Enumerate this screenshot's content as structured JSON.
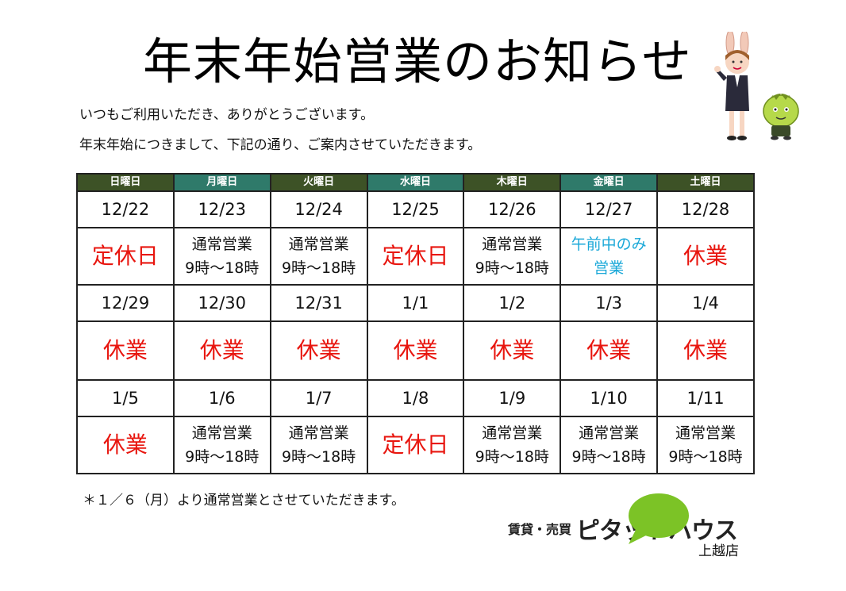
{
  "title": "年末年始営業のお知らせ",
  "intro": {
    "line1": "いつもご利用いただき、ありがとうございます。",
    "line2": "年末年始につきまして、下記の通り、ご案内させていただきます。"
  },
  "calendar": {
    "headers": [
      "日曜日",
      "月曜日",
      "火曜日",
      "水曜日",
      "木曜日",
      "金曜日",
      "土曜日"
    ],
    "weeks": [
      {
        "dates": [
          "12/22",
          "12/23",
          "12/24",
          "12/25",
          "12/26",
          "12/27",
          "12/28"
        ],
        "status": [
          {
            "type": "red",
            "lines": [
              "定休日"
            ]
          },
          {
            "type": "normal",
            "lines": [
              "通常営業",
              "9時～18時"
            ]
          },
          {
            "type": "normal",
            "lines": [
              "通常営業",
              "9時～18時"
            ]
          },
          {
            "type": "red",
            "lines": [
              "定休日"
            ]
          },
          {
            "type": "normal",
            "lines": [
              "通常営業",
              "9時～18時"
            ]
          },
          {
            "type": "cyan",
            "lines": [
              "午前中のみ",
              "営業"
            ]
          },
          {
            "type": "red",
            "lines": [
              "休業"
            ]
          }
        ]
      },
      {
        "dates": [
          "12/29",
          "12/30",
          "12/31",
          "1/1",
          "1/2",
          "1/3",
          "1/4"
        ],
        "status": [
          {
            "type": "red",
            "lines": [
              "休業"
            ]
          },
          {
            "type": "red",
            "lines": [
              "休業"
            ]
          },
          {
            "type": "red",
            "lines": [
              "休業"
            ]
          },
          {
            "type": "red",
            "lines": [
              "休業"
            ]
          },
          {
            "type": "red",
            "lines": [
              "休業"
            ]
          },
          {
            "type": "red",
            "lines": [
              "休業"
            ]
          },
          {
            "type": "red",
            "lines": [
              "休業"
            ]
          }
        ]
      },
      {
        "dates": [
          "1/5",
          "1/6",
          "1/7",
          "1/8",
          "1/9",
          "1/10",
          "1/11"
        ],
        "status": [
          {
            "type": "red",
            "lines": [
              "休業"
            ]
          },
          {
            "type": "normal",
            "lines": [
              "通常営業",
              "9時～18時"
            ]
          },
          {
            "type": "normal",
            "lines": [
              "通常営業",
              "9時～18時"
            ]
          },
          {
            "type": "red",
            "lines": [
              "定休日"
            ]
          },
          {
            "type": "normal",
            "lines": [
              "通常営業",
              "9時～18時"
            ]
          },
          {
            "type": "normal",
            "lines": [
              "通常営業",
              "9時～18時"
            ]
          },
          {
            "type": "normal",
            "lines": [
              "通常営業",
              "9時～18時"
            ]
          }
        ]
      }
    ]
  },
  "note": "＊１／６（月）より通常営業とさせていただきます。",
  "logo": {
    "small": "賃貸・売買",
    "brand": "ピタットハウス",
    "branch": "上越店"
  },
  "colors": {
    "header_dark": "#3d5226",
    "header_teal": "#2f7a6a",
    "closed_red": "#e8160f",
    "half_day_cyan": "#1aa8d8",
    "logo_green": "#7cc326"
  }
}
